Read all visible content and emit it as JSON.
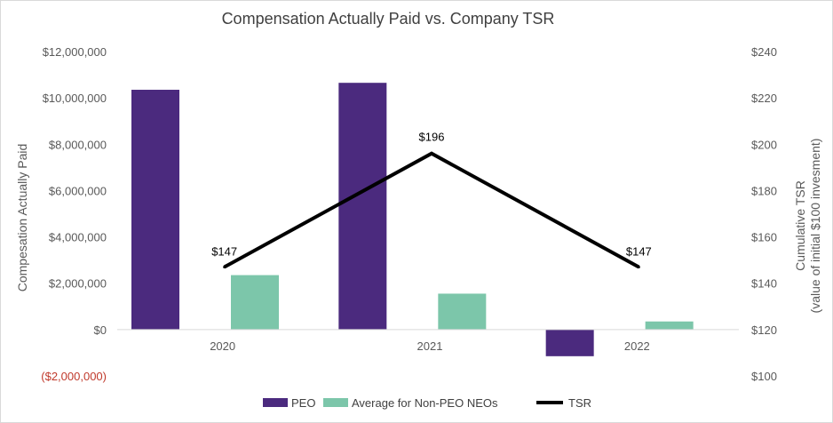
{
  "chart_data": {
    "type": "bar",
    "title": "Compensation Actually Paid vs. Company TSR",
    "categories": [
      "2020",
      "2021",
      "2022"
    ],
    "left_axis": {
      "label": "Compesation Actually Paid",
      "min": -2000000,
      "max": 12000000,
      "ticks": [
        {
          "value": 12000000,
          "label": "$12,000,000",
          "color": "#595959"
        },
        {
          "value": 10000000,
          "label": "$10,000,000",
          "color": "#595959"
        },
        {
          "value": 8000000,
          "label": "$8,000,000",
          "color": "#595959"
        },
        {
          "value": 6000000,
          "label": "$6,000,000",
          "color": "#595959"
        },
        {
          "value": 4000000,
          "label": "$4,000,000",
          "color": "#595959"
        },
        {
          "value": 2000000,
          "label": "$2,000,000",
          "color": "#595959"
        },
        {
          "value": 0,
          "label": "$0",
          "color": "#595959"
        },
        {
          "value": -2000000,
          "label": "($2,000,000)",
          "color": "#c0392b"
        }
      ]
    },
    "right_axis": {
      "label_line1": "Cumulative TSR",
      "label_line2": "(value of initial $100 invesment)",
      "min": 100,
      "max": 240,
      "ticks": [
        {
          "value": 240,
          "label": "$240"
        },
        {
          "value": 220,
          "label": "$220"
        },
        {
          "value": 200,
          "label": "$200"
        },
        {
          "value": 180,
          "label": "$180"
        },
        {
          "value": 160,
          "label": "$160"
        },
        {
          "value": 140,
          "label": "$140"
        },
        {
          "value": 120,
          "label": "$120"
        },
        {
          "value": 100,
          "label": "$100"
        }
      ]
    },
    "series": [
      {
        "name": "PEO",
        "kind": "bar",
        "axis": "left",
        "color": "#4b2a7e",
        "values": [
          10350000,
          10650000,
          -1150000
        ]
      },
      {
        "name": "Average for Non-PEO NEOs",
        "kind": "bar",
        "axis": "left",
        "color": "#7cc6aa",
        "values": [
          2350000,
          1550000,
          350000
        ]
      },
      {
        "name": "TSR",
        "kind": "line",
        "axis": "right",
        "color": "#000000",
        "values": [
          147,
          196,
          147
        ],
        "labels": [
          "$147",
          "$196",
          "$147"
        ]
      }
    ],
    "legend_position": "bottom",
    "grid": false
  }
}
